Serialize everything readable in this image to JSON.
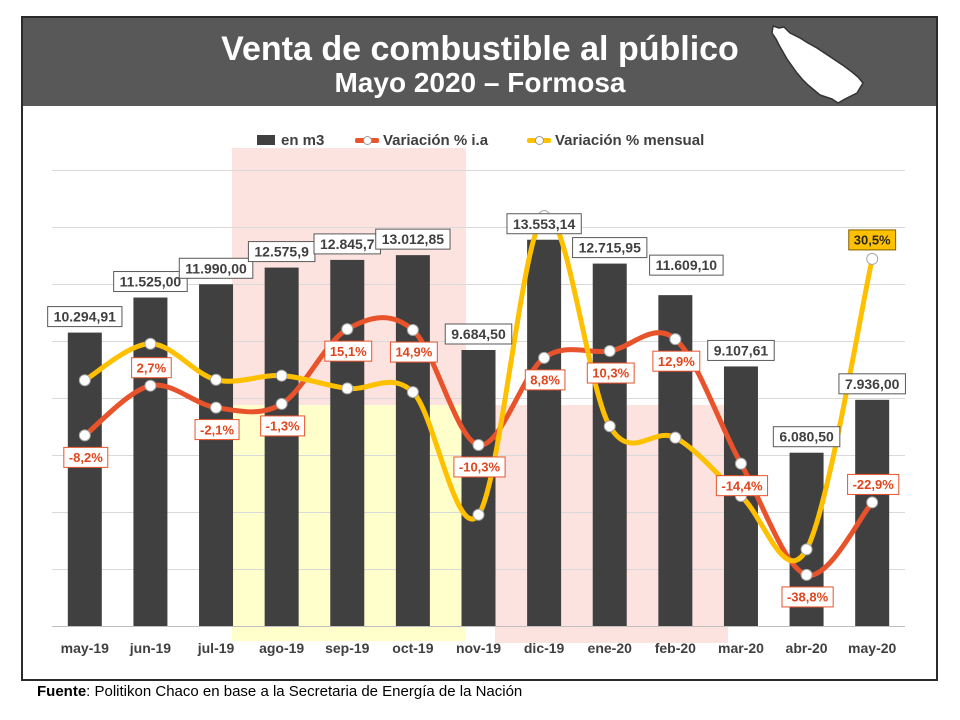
{
  "colors": {
    "header_background": "#585858",
    "header_text": "#FFFFFF",
    "bars": "#404040",
    "variacion_ia": "#E8532B",
    "variacion_mensual": "#FFC000",
    "grid": "#D9D9D9",
    "shade_red": "#FDE3DF",
    "shade_yellow": "#FFFFCC"
  },
  "chart_data": {
    "type": "bar",
    "title": "Venta de combustible al público",
    "subtitle": "Mayo 2020 – Formosa",
    "categories": [
      "may-19",
      "jun-19",
      "jul-19",
      "ago-19",
      "sep-19",
      "oct-19",
      "nov-19",
      "dic-19",
      "ene-20",
      "feb-20",
      "mar-20",
      "abr-20",
      "may-20"
    ],
    "series": [
      {
        "name": "en m3",
        "type": "bar",
        "axis": "primary",
        "values": [
          10294.91,
          11525.0,
          11990.0,
          12575.9,
          12845.7,
          13012.85,
          9684.5,
          13553.14,
          12715.95,
          11609.1,
          9107.61,
          6080.5,
          7936.0
        ],
        "labels": [
          "10.294,91",
          "11.525,00",
          "11.990,00",
          "12.575,9",
          "12.845,7",
          "13.012,85",
          "9.684,50",
          "13.553,14",
          "12.715,95",
          "11.609,10",
          "9.107,61",
          "6.080,50",
          "7.936,00"
        ]
      },
      {
        "name": "Variación % i.a",
        "type": "line",
        "smooth": true,
        "axis": "secondary",
        "values": [
          -8.2,
          2.7,
          -2.1,
          -1.3,
          15.1,
          14.9,
          -10.3,
          8.8,
          10.3,
          12.9,
          -14.4,
          -38.8,
          -22.9
        ],
        "labels": [
          "-8,2%",
          "2,7%",
          "-2,1%",
          "-1,3%",
          "15,1%",
          "14,9%",
          "-10,3%",
          "8,8%",
          "10,3%",
          "12,9%",
          "-14,4%",
          "-38,8%",
          "-22,9%"
        ]
      },
      {
        "name": "Variación % mensual",
        "type": "line",
        "smooth": true,
        "axis": "secondary",
        "values": [
          3.9,
          11.9,
          4.0,
          4.9,
          2.1,
          1.3,
          -25.6,
          39.9,
          -6.2,
          -8.7,
          -21.5,
          -33.2,
          30.5
        ],
        "labels": [
          null,
          null,
          null,
          null,
          null,
          null,
          null,
          null,
          null,
          null,
          null,
          null,
          "30,5%"
        ]
      }
    ],
    "ylim": [
      0,
      16000
    ],
    "y2lim": [
      -50,
      50
    ],
    "grid": true,
    "legend_position": "top"
  },
  "footer": {
    "source_label": "Fuente",
    "source_text": ": Politikon Chaco en base a la Secretaria de Energía de la Nación"
  }
}
